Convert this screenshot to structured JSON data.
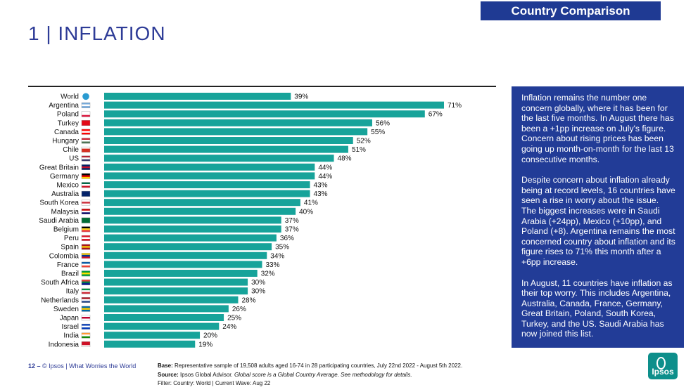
{
  "header": {
    "tag": "Country Comparison",
    "title": "1 | INFLATION"
  },
  "chart_data": {
    "type": "bar",
    "orientation": "horizontal",
    "categories": [
      "World",
      "Argentina",
      "Poland",
      "Turkey",
      "Canada",
      "Hungary",
      "Chile",
      "US",
      "Great Britain",
      "Germany",
      "Mexico",
      "Australia",
      "South Korea",
      "Malaysia",
      "Saudi Arabia",
      "Belgium",
      "Peru",
      "Spain",
      "Colombia",
      "France",
      "Brazil",
      "South Africa",
      "Italy",
      "Netherlands",
      "Sweden",
      "Japan",
      "Israel",
      "India",
      "Indonesia"
    ],
    "values": [
      39,
      71,
      67,
      56,
      55,
      52,
      51,
      48,
      44,
      44,
      43,
      43,
      41,
      40,
      37,
      37,
      36,
      35,
      34,
      33,
      32,
      30,
      30,
      28,
      26,
      25,
      24,
      20,
      19
    ],
    "value_suffix": "%",
    "bar_color": "#17a39a",
    "xlim": [
      0,
      75
    ],
    "grid": false,
    "legend": "none"
  },
  "flags": [
    {
      "top": "#2a9bd1",
      "mid": "#2a9bd1",
      "bottom": "#2a9bd1"
    },
    {
      "top": "#75aadb",
      "mid": "#ffffff",
      "bottom": "#75aadb"
    },
    {
      "top": "#ffffff",
      "mid": "#ffffff",
      "bottom": "#dc143c"
    },
    {
      "top": "#e30a17",
      "mid": "#e30a17",
      "bottom": "#e30a17"
    },
    {
      "top": "#ff0000",
      "mid": "#ffffff",
      "bottom": "#ff0000"
    },
    {
      "top": "#ce2939",
      "mid": "#ffffff",
      "bottom": "#477050"
    },
    {
      "top": "#ffffff",
      "mid": "#d52b1e",
      "bottom": "#d52b1e"
    },
    {
      "top": "#b22234",
      "mid": "#ffffff",
      "bottom": "#3c3b6e"
    },
    {
      "top": "#012169",
      "mid": "#c8102e",
      "bottom": "#012169"
    },
    {
      "top": "#000000",
      "mid": "#dd0000",
      "bottom": "#ffce00"
    },
    {
      "top": "#006847",
      "mid": "#ffffff",
      "bottom": "#ce1126"
    },
    {
      "top": "#012169",
      "mid": "#012169",
      "bottom": "#012169"
    },
    {
      "top": "#ffffff",
      "mid": "#cd2e3a",
      "bottom": "#ffffff"
    },
    {
      "top": "#cc0001",
      "mid": "#ffffff",
      "bottom": "#010066"
    },
    {
      "top": "#006c35",
      "mid": "#006c35",
      "bottom": "#006c35"
    },
    {
      "top": "#000000",
      "mid": "#fdda24",
      "bottom": "#ef3340"
    },
    {
      "top": "#d91023",
      "mid": "#ffffff",
      "bottom": "#d91023"
    },
    {
      "top": "#aa151b",
      "mid": "#f1bf00",
      "bottom": "#aa151b"
    },
    {
      "top": "#fcd116",
      "mid": "#003893",
      "bottom": "#ce1126"
    },
    {
      "top": "#0055a4",
      "mid": "#ffffff",
      "bottom": "#ef4135"
    },
    {
      "top": "#009c3b",
      "mid": "#ffdf00",
      "bottom": "#009c3b"
    },
    {
      "top": "#e03c31",
      "mid": "#007749",
      "bottom": "#001489"
    },
    {
      "top": "#009246",
      "mid": "#ffffff",
      "bottom": "#ce2b37"
    },
    {
      "top": "#ae1c28",
      "mid": "#ffffff",
      "bottom": "#21468b"
    },
    {
      "top": "#006aa7",
      "mid": "#fecc00",
      "bottom": "#006aa7"
    },
    {
      "top": "#ffffff",
      "mid": "#bc002d",
      "bottom": "#ffffff"
    },
    {
      "top": "#0038b8",
      "mid": "#ffffff",
      "bottom": "#0038b8"
    },
    {
      "top": "#ff9933",
      "mid": "#ffffff",
      "bottom": "#138808"
    },
    {
      "top": "#ce1126",
      "mid": "#ce1126",
      "bottom": "#ffffff"
    }
  ],
  "panel": {
    "p1": "Inflation remains the number one concern globally, where it has been for the last five months. In August there has been a +1pp increase on July's figure. Concern about rising prices has been going up month-on-month for the last 13 consecutive months.",
    "p2": "Despite concern about inflation already being at record levels, 16 countries have seen a rise in worry about the issue. The biggest increases were in Saudi Arabia (+24pp), Mexico (+10pp), and Poland (+8). Argentina remains the most concerned country about inflation and its figure rises to 71% this month after a +6pp increase.",
    "p3": "In August, 11 countries have inflation as their top worry. This includes Argentina, Australia, Canada, France, Germany, Great Britain, Poland, South Korea, Turkey, and the US. Saudi Arabia has now joined this list."
  },
  "footer": {
    "page": "12 –",
    "source_line": "© Ipsos | What Worries the World",
    "base_label": "Base:",
    "base_text": " Representative sample of 19,508 adults aged 16-74 in 28 participating countries, July 22nd 2022 - August 5th 2022.",
    "source_label": "Source:",
    "source_text": " Ipsos Global Advisor. ",
    "source_note": "Global score is a Global Country Average. See methodology for details.",
    "filter": "Filter: Country: World | Current Wave: Aug 22"
  },
  "logo": {
    "text": "Ipsos",
    "color": "#0d8f8b"
  }
}
